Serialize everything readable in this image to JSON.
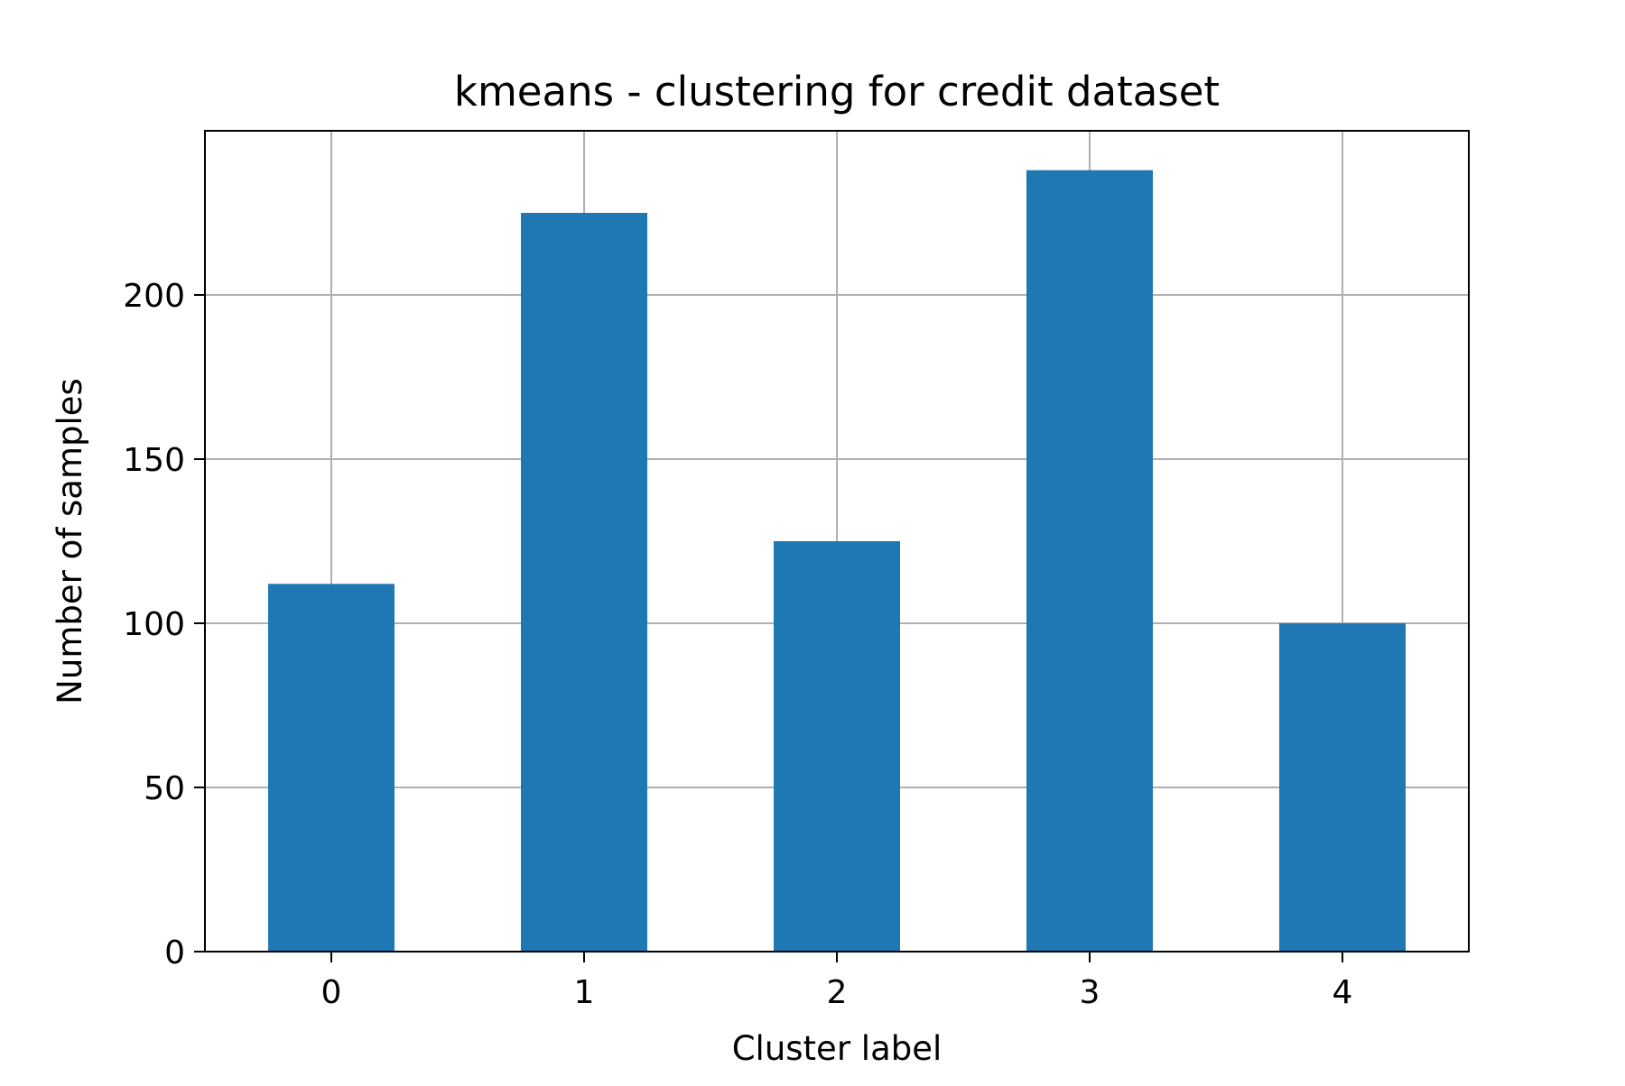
{
  "chart_data": {
    "type": "bar",
    "title": "kmeans - clustering for credit dataset",
    "xlabel": "Cluster label",
    "ylabel": "Number of samples",
    "categories": [
      "0",
      "1",
      "2",
      "3",
      "4"
    ],
    "values": [
      112,
      225,
      125,
      238,
      100
    ],
    "ylim": [
      0,
      250
    ],
    "yticks": [
      0,
      50,
      100,
      150,
      200
    ],
    "grid": true,
    "bar_color": "#1f77b4",
    "grid_color": "#b0b0b0",
    "axis_color": "#000000"
  }
}
